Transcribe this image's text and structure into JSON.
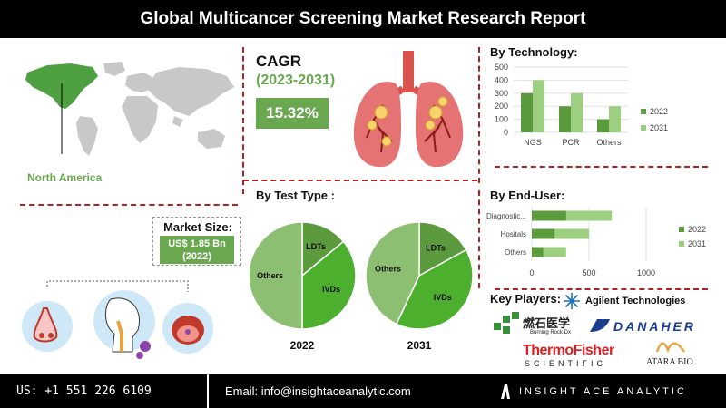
{
  "header": {
    "title": "Global Multicancer Screening Market Research Report"
  },
  "region": {
    "label": "North America"
  },
  "cagr": {
    "title": "CAGR",
    "years": "(2023-2031)",
    "value": "15.32%"
  },
  "market_size": {
    "label": "Market Size:",
    "value": "US$ 1.85 Bn",
    "year": "(2022)"
  },
  "colors": {
    "dark_green": "#5c9a3e",
    "light_green": "#9ccf80",
    "pie_light": "#8cbf72",
    "accent_red": "#b22222"
  },
  "chart_data": [
    {
      "type": "bar",
      "title": "By Technology:",
      "categories": [
        "NGS",
        "PCR",
        "Others"
      ],
      "series": [
        {
          "name": "2022",
          "values": [
            300,
            200,
            100
          ]
        },
        {
          "name": "2031",
          "values": [
            400,
            300,
            200
          ]
        }
      ],
      "ylim": [
        0,
        500
      ],
      "yticks": [
        0,
        100,
        200,
        300,
        400,
        500
      ],
      "legend": "right"
    },
    {
      "type": "pie",
      "title": "By Test Type :",
      "pies": [
        {
          "label": "2022",
          "slices": [
            {
              "name": "LDTs",
              "value": 14
            },
            {
              "name": "IVDs",
              "value": 36
            },
            {
              "name": "Others",
              "value": 50
            }
          ]
        },
        {
          "label": "2031",
          "slices": [
            {
              "name": "LDTs",
              "value": 17
            },
            {
              "name": "IVDs",
              "value": 40
            },
            {
              "name": "Others",
              "value": 43
            }
          ]
        }
      ]
    },
    {
      "type": "bar",
      "orientation": "horizontal",
      "title": "By End-User:",
      "categories": [
        "Diagnostic...",
        "Hositals",
        "Others"
      ],
      "series": [
        {
          "name": "2022",
          "values": [
            300,
            200,
            100
          ]
        },
        {
          "name": "2031",
          "values": [
            700,
            500,
            300
          ]
        }
      ],
      "xlim": [
        0,
        1000
      ],
      "xticks": [
        0,
        500,
        1000
      ],
      "legend": "right"
    }
  ],
  "key_players": {
    "title": "Key Players:",
    "items": [
      "Agilent Technologies",
      "燃石医学",
      "Burning Rock Dx",
      "DANAHER",
      "ThermoFisher",
      "SCIENTIFIC",
      "ATARA BIO"
    ]
  },
  "footer": {
    "phone": "US: +1 551 226 6109",
    "email": "Email: info@insightaceanalytic.com",
    "brand": "INSIGHT ACE ANALYTIC"
  }
}
